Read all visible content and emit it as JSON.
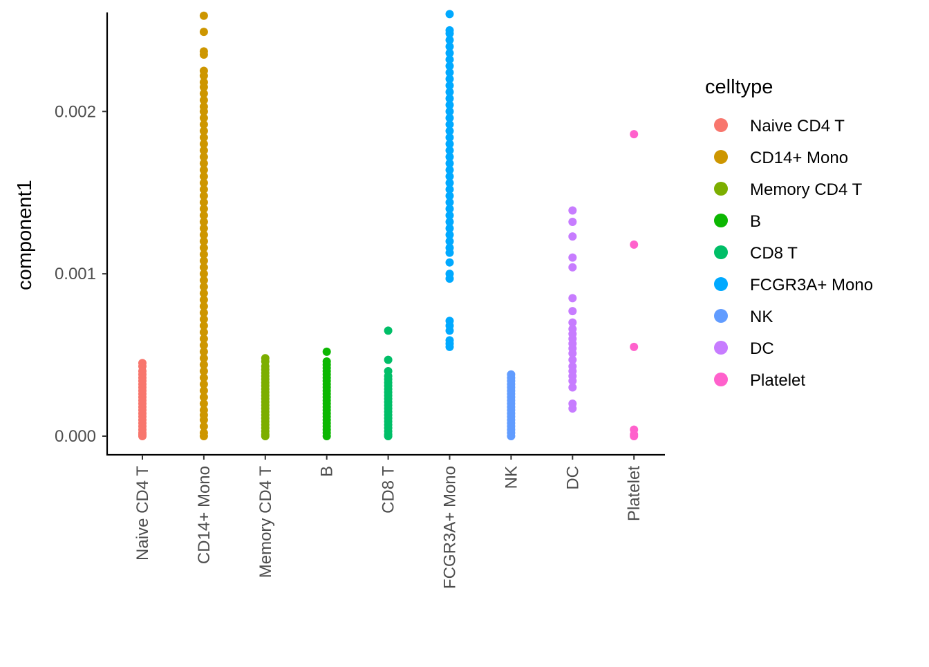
{
  "chart_data": {
    "type": "scatter",
    "subtype": "strip",
    "xlabel": "",
    "ylabel": "component1",
    "ylim": [
      -0.000115,
      0.00261
    ],
    "yticks": [
      0.0,
      0.001,
      0.002
    ],
    "ytick_labels": [
      "0.000",
      "0.001",
      "0.002"
    ],
    "grid": false,
    "legend_position": "right",
    "legend_title": "celltype",
    "categories": [
      "Naive CD4 T",
      "CD14+ Mono",
      "Memory CD4 T",
      "B",
      "CD8 T",
      "FCGR3A+ Mono",
      "NK",
      "DC",
      "Platelet"
    ],
    "series": [
      {
        "name": "Naive CD4 T",
        "color": "#F8766D",
        "values": [
          0.00045,
          0.00043,
          0.0004,
          0.00038,
          0.00036,
          0.00034,
          0.00032,
          0.0003,
          0.00028,
          0.00026,
          0.00024,
          0.00022,
          0.0002,
          0.00018,
          0.00016,
          0.00014,
          0.00012,
          0.0001,
          8e-05,
          6e-05,
          4e-05,
          2e-05,
          1e-05,
          0.0
        ]
      },
      {
        "name": "CD14+ Mono",
        "color": "#CD9600",
        "values": [
          0.00259,
          0.00249,
          0.00237,
          0.00235,
          0.00225,
          0.00222,
          0.00218,
          0.00215,
          0.00211,
          0.00207,
          0.00203,
          0.002,
          0.00196,
          0.00192,
          0.00188,
          0.00184,
          0.0018,
          0.00176,
          0.00172,
          0.00168,
          0.00164,
          0.0016,
          0.00156,
          0.00152,
          0.00148,
          0.00144,
          0.0014,
          0.00136,
          0.00132,
          0.00128,
          0.00124,
          0.0012,
          0.00116,
          0.00112,
          0.00108,
          0.00104,
          0.001,
          0.00096,
          0.00092,
          0.00088,
          0.00084,
          0.0008,
          0.00076,
          0.00072,
          0.00068,
          0.00064,
          0.0006,
          0.00056,
          0.00052,
          0.00048,
          0.00044,
          0.0004,
          0.00036,
          0.00032,
          0.00028,
          0.00024,
          0.0002,
          0.00016,
          0.00013,
          0.0001,
          6e-05,
          2e-05,
          0.0
        ]
      },
      {
        "name": "Memory CD4 T",
        "color": "#7CAE00",
        "values": [
          0.00048,
          0.00046,
          0.00043,
          0.00041,
          0.00039,
          0.00037,
          0.00035,
          0.00033,
          0.00031,
          0.00029,
          0.00027,
          0.00025,
          0.00023,
          0.00021,
          0.00019,
          0.00017,
          0.00015,
          0.00013,
          0.00011,
          9e-05,
          7e-05,
          5e-05,
          3e-05,
          1e-05,
          0.0
        ]
      },
      {
        "name": "B",
        "color": "#0CB702",
        "values": [
          0.00052,
          0.00046,
          0.00044,
          0.00042,
          0.0004,
          0.00038,
          0.00036,
          0.00034,
          0.00032,
          0.0003,
          0.00028,
          0.00026,
          0.00024,
          0.00022,
          0.0002,
          0.00018,
          0.00016,
          0.00014,
          0.00012,
          0.0001,
          8e-05,
          6e-05,
          4e-05,
          2e-05,
          0.0
        ]
      },
      {
        "name": "CD8 T",
        "color": "#00BE67",
        "values": [
          0.00065,
          0.00047,
          0.0004,
          0.00037,
          0.00035,
          0.00033,
          0.00031,
          0.00029,
          0.00027,
          0.00025,
          0.00023,
          0.00021,
          0.00019,
          0.00017,
          0.00015,
          0.00013,
          0.00011,
          9e-05,
          7e-05,
          5e-05,
          3e-05,
          1e-05,
          0.0
        ]
      },
      {
        "name": "FCGR3A+ Mono",
        "color": "#00A9FF",
        "values": [
          0.0026,
          0.0025,
          0.00248,
          0.00244,
          0.0024,
          0.00236,
          0.00232,
          0.00228,
          0.00224,
          0.0022,
          0.00216,
          0.00212,
          0.00208,
          0.00204,
          0.002,
          0.00196,
          0.00192,
          0.00188,
          0.00184,
          0.0018,
          0.00176,
          0.00172,
          0.00168,
          0.00164,
          0.0016,
          0.00156,
          0.00152,
          0.00148,
          0.00144,
          0.0014,
          0.00136,
          0.00132,
          0.00128,
          0.00124,
          0.0012,
          0.00116,
          0.00113,
          0.00107,
          0.001,
          0.00097,
          0.00071,
          0.00068,
          0.00065,
          0.00059,
          0.00057,
          0.00055
        ]
      },
      {
        "name": "NK",
        "color": "#619CFF",
        "values": [
          0.00038,
          0.00036,
          0.00034,
          0.00032,
          0.0003,
          0.00028,
          0.00026,
          0.00024,
          0.00022,
          0.0002,
          0.00018,
          0.00016,
          0.00014,
          0.00012,
          0.0001,
          8e-05,
          6e-05,
          4e-05,
          2e-05,
          0.0
        ]
      },
      {
        "name": "DC",
        "color": "#C77CFF",
        "values": [
          0.00139,
          0.00132,
          0.00123,
          0.0011,
          0.00104,
          0.00085,
          0.00077,
          0.0007,
          0.00066,
          0.00063,
          0.0006,
          0.00057,
          0.00054,
          0.00051,
          0.00047,
          0.00043,
          0.0004,
          0.00037,
          0.00034,
          0.0003,
          0.0002,
          0.00017
        ]
      },
      {
        "name": "Platelet",
        "color": "#FF61CC",
        "values": [
          0.00186,
          0.00118,
          0.00055,
          4e-05,
          1e-05,
          0.0
        ]
      }
    ]
  }
}
